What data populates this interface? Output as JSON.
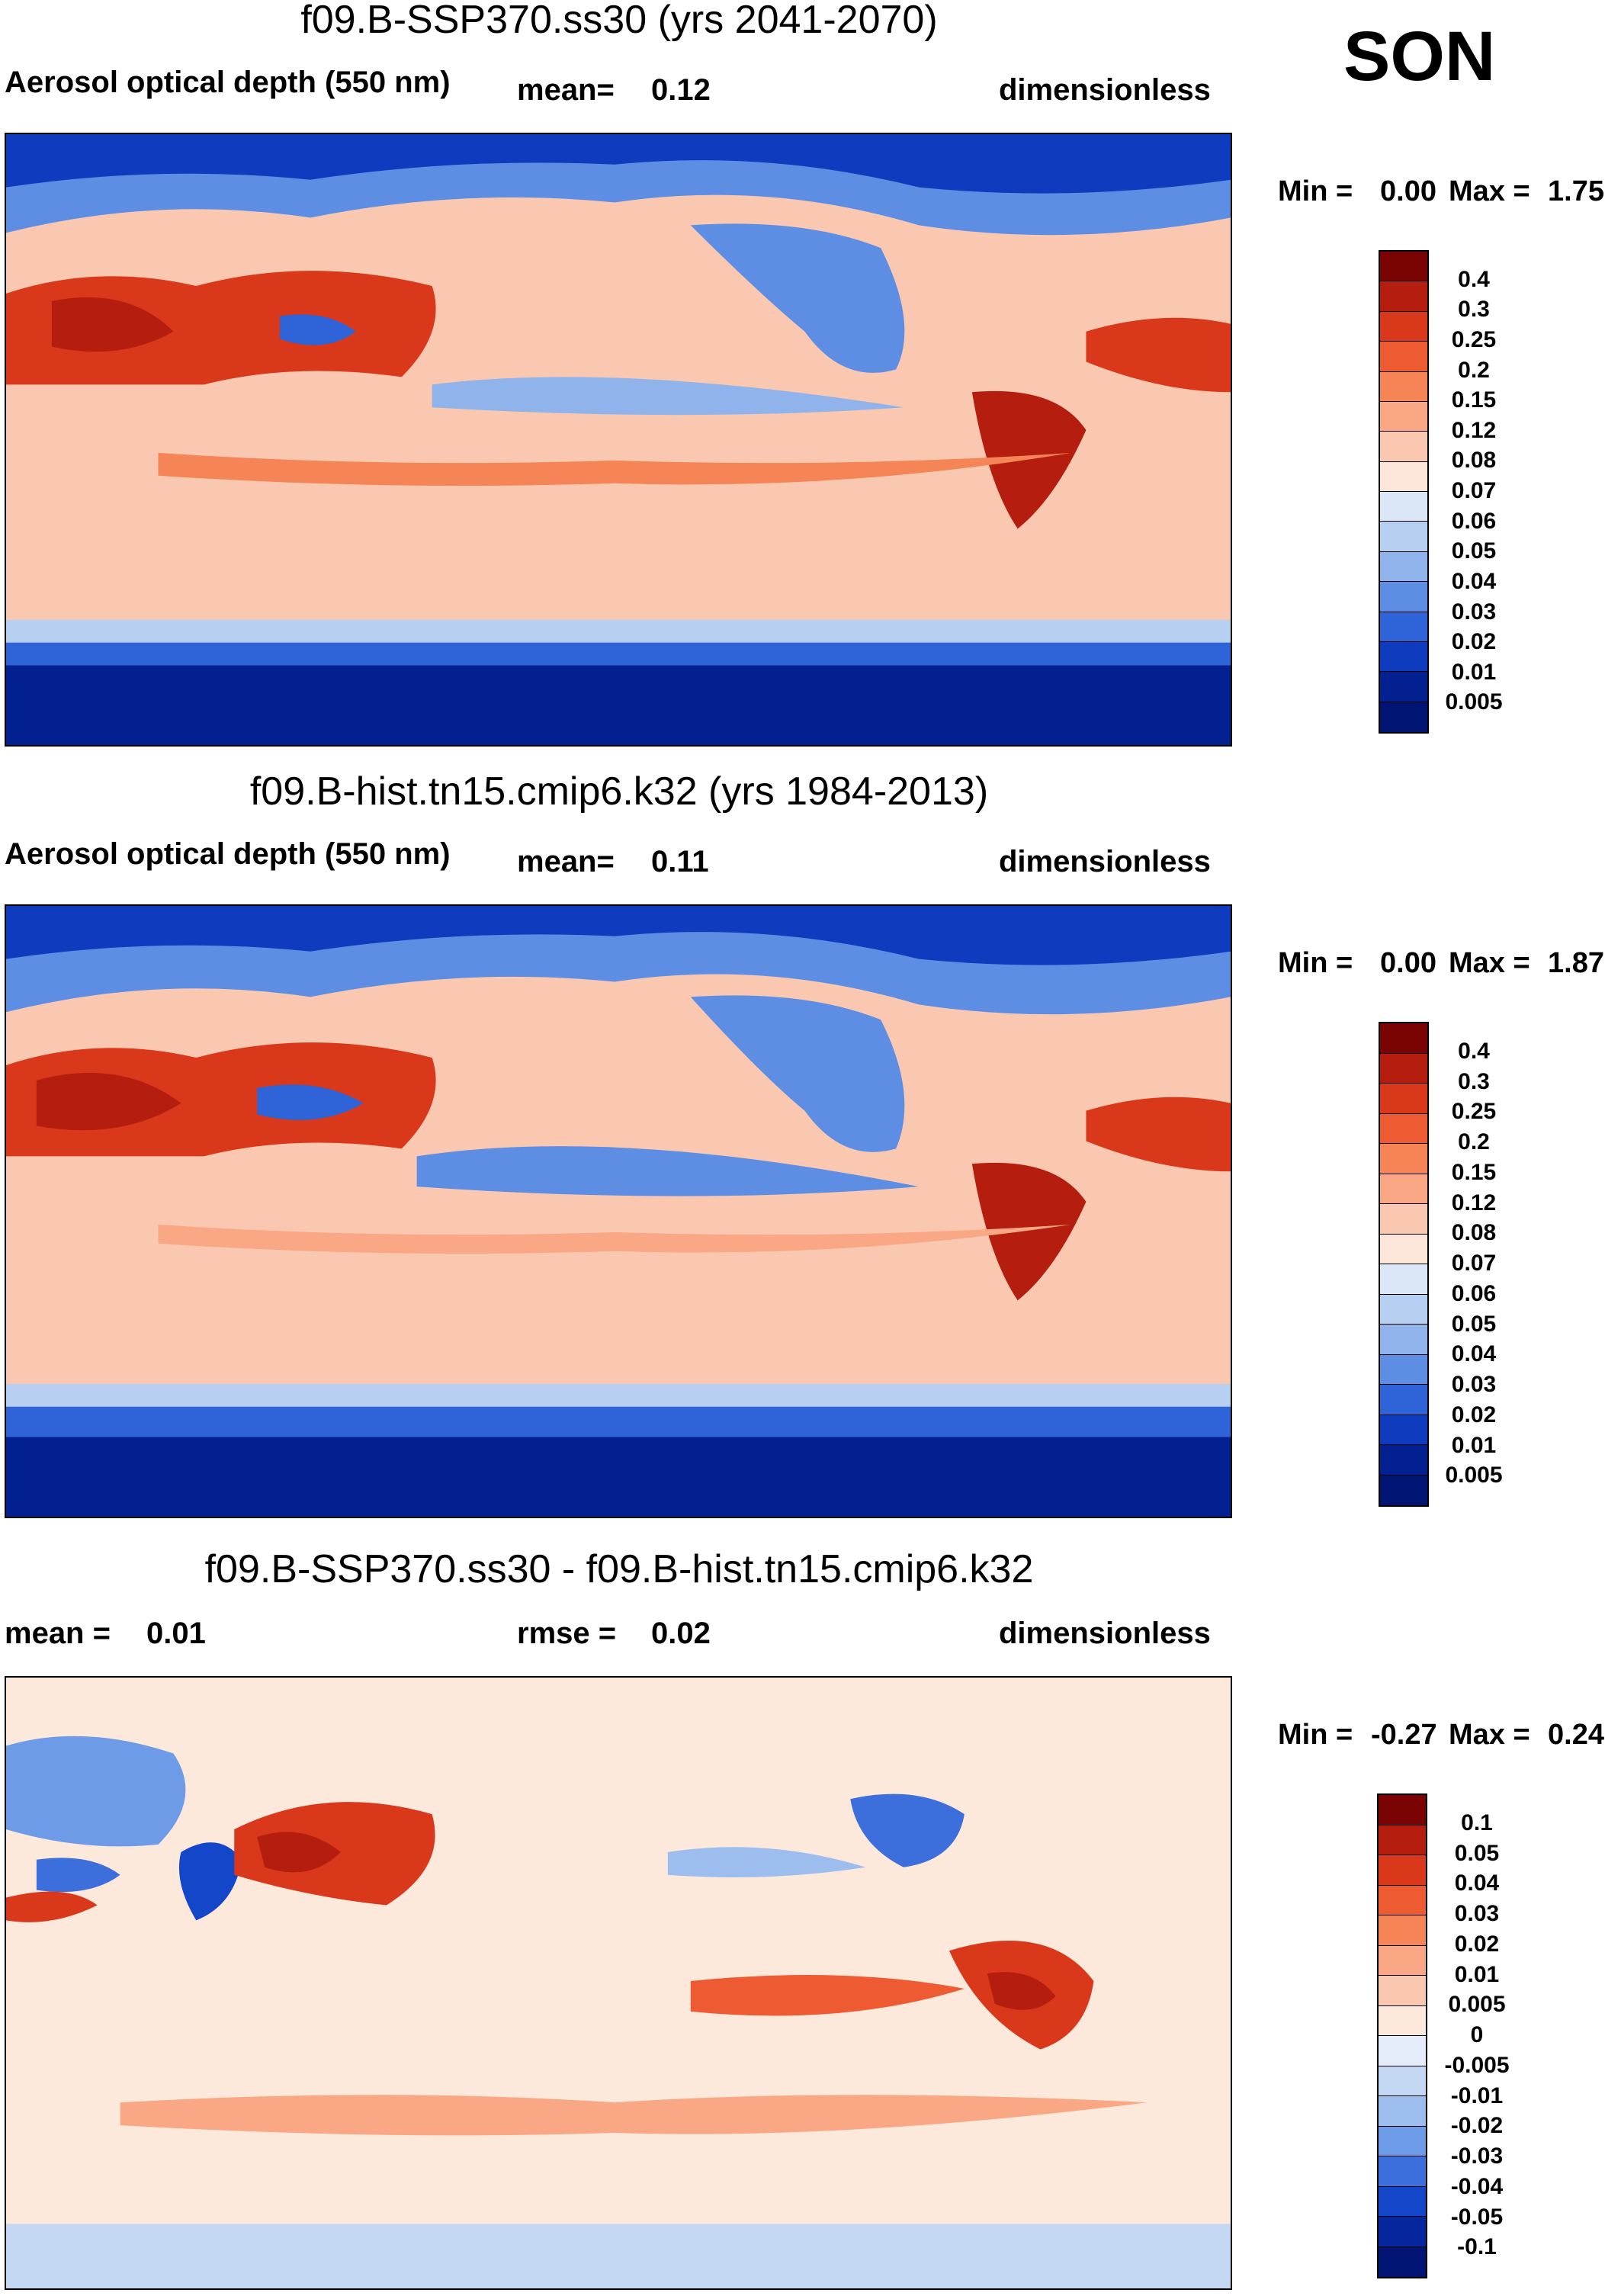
{
  "season": "SON",
  "panels": [
    {
      "id": "future",
      "title": "f09.B-SSP370.ss30 (yrs 2041-2070)",
      "left_label": "Aerosol optical depth (550 nm)",
      "center_label": "mean=",
      "center_value": "0.12",
      "right_label": "dimensionless",
      "min_label": "Min =",
      "min_value": "0.00",
      "max_label": "Max =",
      "max_value": "1.75",
      "colorbar_levels": [
        "0.4",
        "0.3",
        "0.25",
        "0.2",
        "0.15",
        "0.12",
        "0.08",
        "0.07",
        "0.06",
        "0.05",
        "0.04",
        "0.03",
        "0.02",
        "0.01",
        "0.005"
      ]
    },
    {
      "id": "hist",
      "title": "f09.B-hist.tn15.cmip6.k32 (yrs 1984-2013)",
      "left_label": "Aerosol optical depth (550 nm)",
      "center_label": "mean=",
      "center_value": "0.11",
      "right_label": "dimensionless",
      "min_label": "Min =",
      "min_value": "0.00",
      "max_label": "Max =",
      "max_value": "1.87",
      "colorbar_levels": [
        "0.4",
        "0.3",
        "0.25",
        "0.2",
        "0.15",
        "0.12",
        "0.08",
        "0.07",
        "0.06",
        "0.05",
        "0.04",
        "0.03",
        "0.02",
        "0.01",
        "0.005"
      ]
    },
    {
      "id": "diff",
      "title": "f09.B-SSP370.ss30 - f09.B-hist.tn15.cmip6.k32",
      "left_label": "mean =",
      "left_value": "0.01",
      "center_label": "rmse =",
      "center_value": "0.02",
      "right_label": "dimensionless",
      "min_label": "Min =",
      "min_value": "-0.27",
      "max_label": "Max =",
      "max_value": "0.24",
      "colorbar_levels": [
        "0.1",
        "0.05",
        "0.04",
        "0.03",
        "0.02",
        "0.01",
        "0.005",
        "0",
        "-0.005",
        "-0.01",
        "-0.02",
        "-0.03",
        "-0.04",
        "-0.05",
        "-0.1"
      ]
    }
  ],
  "colors": {
    "abs_scale": [
      "#7a0403",
      "#b51e0e",
      "#d9381a",
      "#ee5a32",
      "#f58456",
      "#f9a784",
      "#fac8b0",
      "#fce6da",
      "#dbe7f6",
      "#b7cff0",
      "#8fb3ea",
      "#5d8ee3",
      "#2f63d8",
      "#0f3cbf",
      "#02208f",
      "#001473"
    ],
    "diff_scale": [
      "#7a0403",
      "#b51e0e",
      "#d9381a",
      "#ee5a32",
      "#f58456",
      "#f9a784",
      "#fac8b0",
      "#fde9dc",
      "#e3ecf8",
      "#c4d8f3",
      "#9dbdee",
      "#6e9be7",
      "#3d6fdc",
      "#1346c9",
      "#05269c",
      "#001473"
    ],
    "ocean_high": "#fac8b0",
    "polar_low": "#02208f"
  }
}
